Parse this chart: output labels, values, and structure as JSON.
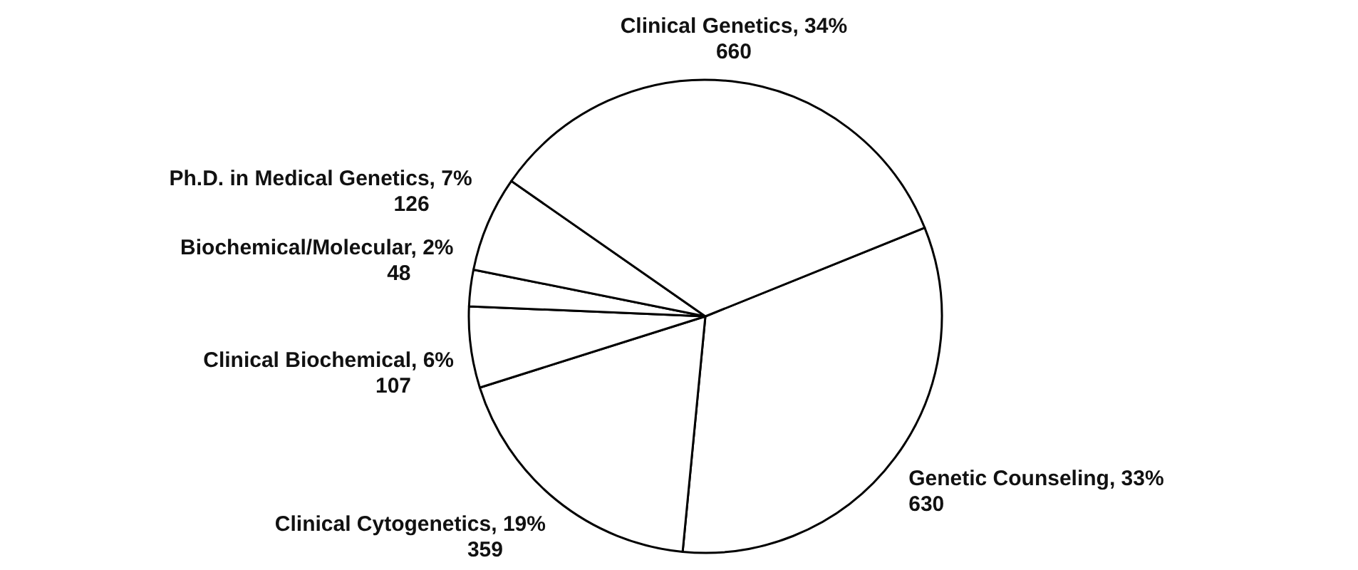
{
  "chart_data": {
    "type": "pie",
    "categories": [
      "Genetic Counseling, 33%",
      "Clinical Cytogenetics, 19%",
      "Clinical Biochemical, 6%",
      "Biochemical/Molecular, 2%",
      "Ph.D. in Medical Genetics, 7%",
      "Clinical Genetics, 34%"
    ],
    "values": [
      630,
      359,
      107,
      48,
      126,
      660
    ],
    "colors": [
      "#ffffff",
      "#ffffff",
      "#ffffff",
      "#ffffff",
      "#ffffff",
      "#ffffff"
    ],
    "data_labels": true
  }
}
